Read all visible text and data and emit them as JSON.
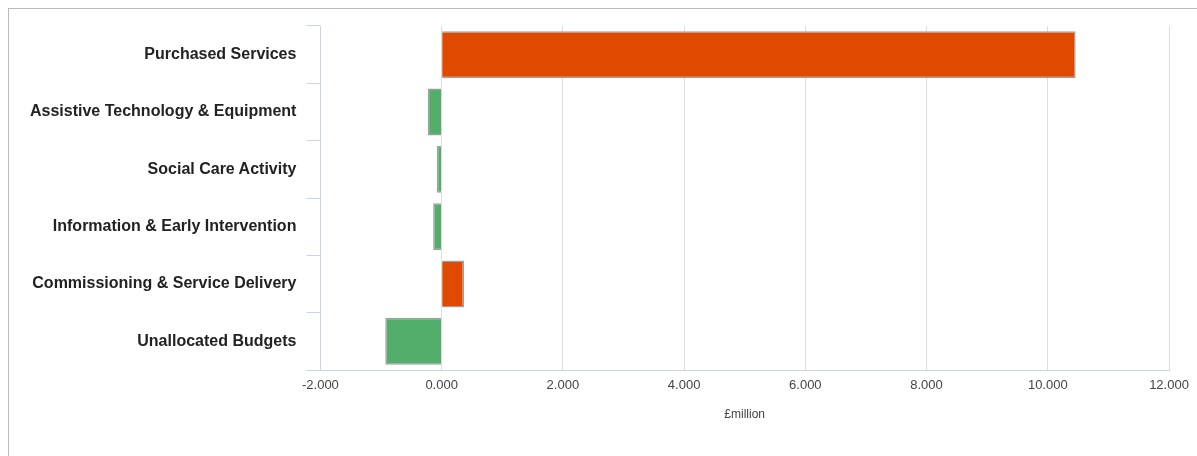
{
  "chart_data": {
    "type": "bar",
    "orientation": "horizontal",
    "xlabel": "£million",
    "categories": [
      "Purchased Services",
      "Assistive Technology & Equipment",
      "Social Care Activity",
      "Information & Early Intervention",
      "Commissioning & Service Delivery",
      "Unallocated Budgets"
    ],
    "values": [
      10.46,
      -0.23,
      -0.08,
      -0.14,
      0.37,
      -0.93
    ],
    "colors": [
      "#e04a00",
      "#52ae6a",
      "#52ae6a",
      "#52ae6a",
      "#e04a00",
      "#52ae6a"
    ],
    "xlim": [
      -2,
      12
    ],
    "xticks": [
      {
        "value": -2,
        "label": "-2.000"
      },
      {
        "value": 0,
        "label": "0.000"
      },
      {
        "value": 2,
        "label": "2.000"
      },
      {
        "value": 4,
        "label": "4.000"
      },
      {
        "value": 6,
        "label": "6.000"
      },
      {
        "value": 8,
        "label": "8.000"
      },
      {
        "value": 10,
        "label": "10.000"
      },
      {
        "value": 12,
        "label": "12.000"
      }
    ],
    "grid": "x",
    "legend": false
  }
}
